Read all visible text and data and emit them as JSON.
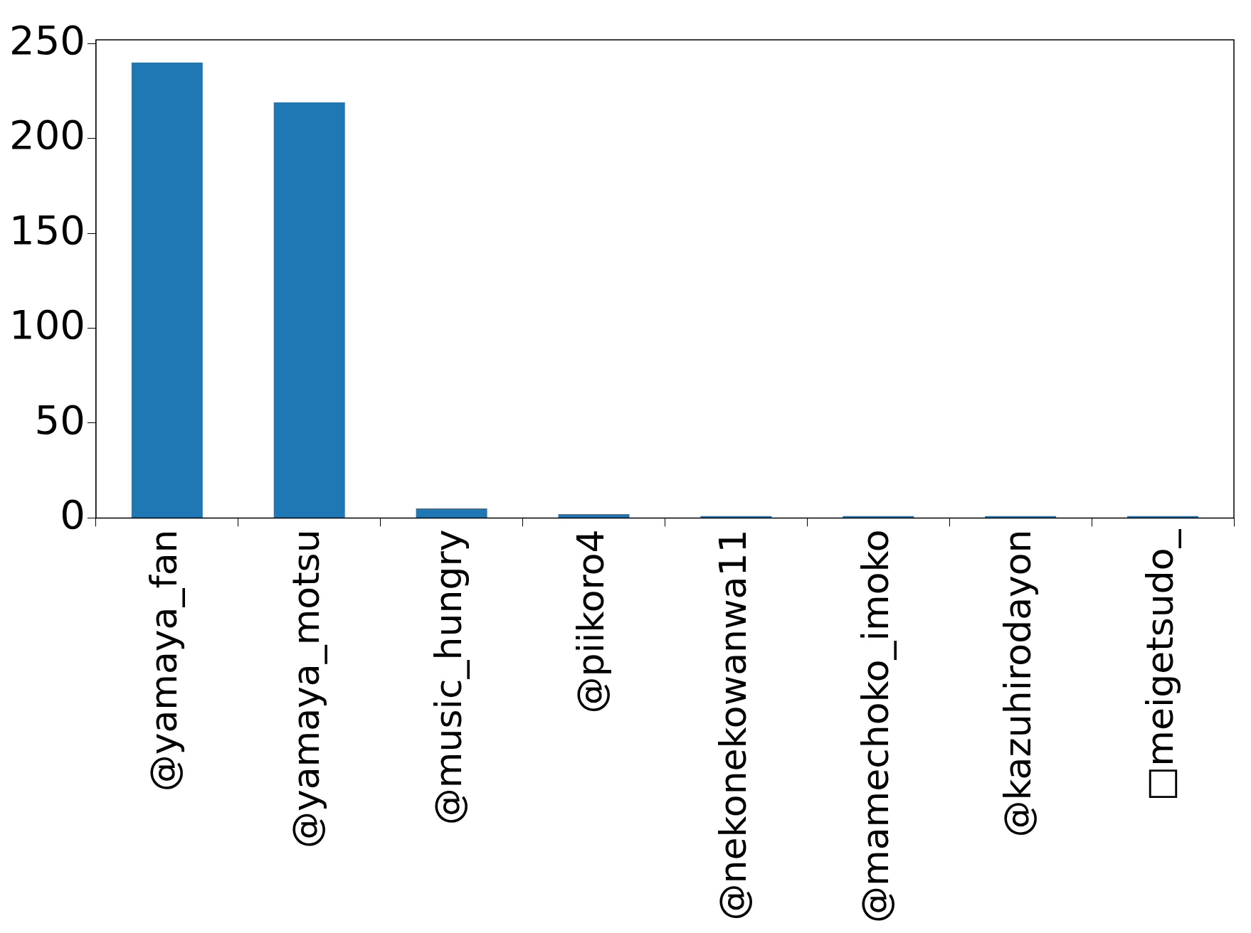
{
  "chart_data": {
    "type": "bar",
    "categories": [
      "@yamaya_fan",
      "@yamaya_motsu",
      "@music_hungry",
      "@piikoro4",
      "@nekonekowanwa11",
      "@mamechoko_imoko",
      "@kazuhirodayon",
      "□meigetsudo_"
    ],
    "values": [
      240,
      219,
      5,
      2,
      1,
      1,
      1,
      1
    ],
    "color": "#1f77b4",
    "ylim": [
      0,
      252
    ],
    "yticks": [
      0,
      50,
      100,
      150,
      200,
      250
    ],
    "grid": false,
    "legend": false
  }
}
